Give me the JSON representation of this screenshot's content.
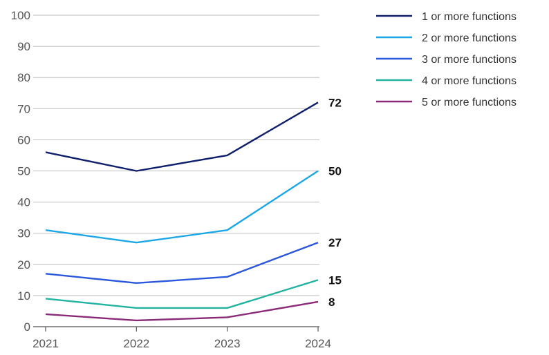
{
  "chart_data": {
    "type": "line",
    "title": "",
    "xlabel": "",
    "ylabel": "",
    "x": [
      "2021",
      "2022",
      "2023",
      "2024"
    ],
    "ylim": [
      0,
      100
    ],
    "yticks": [
      0,
      10,
      20,
      30,
      40,
      50,
      60,
      70,
      80,
      90,
      100
    ],
    "grid": true,
    "legend": "top-right",
    "series": [
      {
        "name": "1 or more functions",
        "color": "#0f1f6b",
        "values": [
          56,
          50,
          55,
          72
        ],
        "end_label": "72"
      },
      {
        "name": "2 or more functions",
        "color": "#1ca7e6",
        "values": [
          31,
          27,
          31,
          50
        ],
        "end_label": "50"
      },
      {
        "name": "3 or more functions",
        "color": "#2b57dc",
        "values": [
          17,
          14,
          16,
          27
        ],
        "end_label": "27"
      },
      {
        "name": "4 or more functions",
        "color": "#22b3a0",
        "values": [
          9,
          6,
          6,
          15
        ],
        "end_label": "15"
      },
      {
        "name": "5 or more functions",
        "color": "#8a2a78",
        "values": [
          4,
          2,
          3,
          8
        ],
        "end_label": "8"
      }
    ]
  }
}
